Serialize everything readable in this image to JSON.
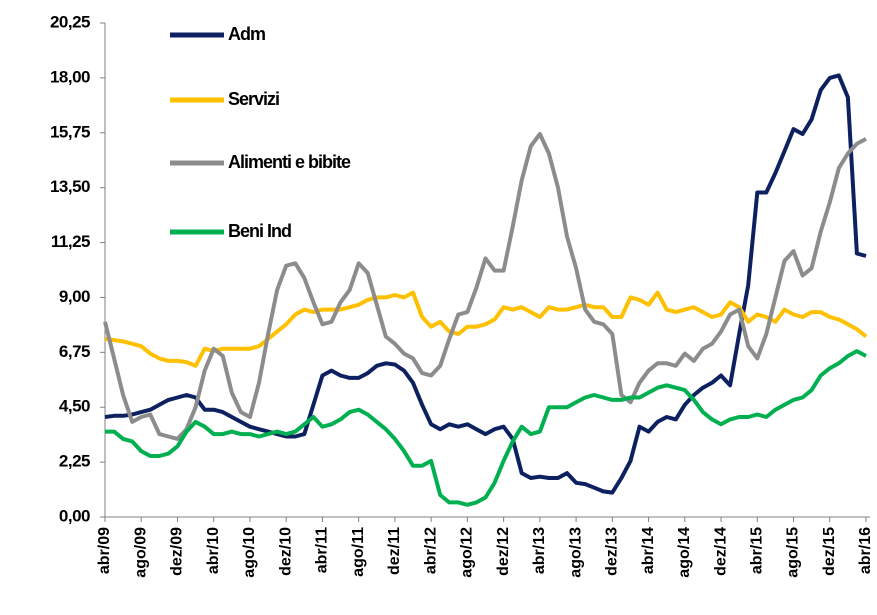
{
  "chart_data": {
    "type": "line",
    "categories": [
      "abr/09",
      null,
      null,
      null,
      "ago/09",
      null,
      null,
      null,
      "dez/09",
      null,
      null,
      null,
      "abr/10",
      null,
      null,
      null,
      "ago/10",
      null,
      null,
      null,
      "dez/10",
      null,
      null,
      null,
      "abr/11",
      null,
      null,
      null,
      "ago/11",
      null,
      null,
      null,
      "dez/11",
      null,
      null,
      null,
      "abr/12",
      null,
      null,
      null,
      "ago/12",
      null,
      null,
      null,
      "dez/12",
      null,
      null,
      null,
      "abr/13",
      null,
      null,
      null,
      "ago/13",
      null,
      null,
      null,
      "dez/13",
      null,
      null,
      null,
      "abr/14",
      null,
      null,
      null,
      "ago/14",
      null,
      null,
      null,
      "dez/14",
      null,
      null,
      null,
      "abr/15",
      null,
      null,
      null,
      "ago/15",
      null,
      null,
      null,
      "dez/15",
      null,
      null,
      null,
      "abr/16"
    ],
    "series": [
      {
        "name": "Adm",
        "color": "#0d2161",
        "values": [
          4.1,
          4.15,
          4.15,
          4.2,
          4.3,
          4.4,
          4.6,
          4.8,
          4.9,
          5.0,
          4.9,
          4.4,
          4.4,
          4.3,
          4.1,
          3.9,
          3.7,
          3.6,
          3.5,
          3.4,
          3.3,
          3.3,
          3.4,
          4.6,
          5.8,
          6.0,
          5.8,
          5.7,
          5.7,
          5.9,
          6.2,
          6.3,
          6.25,
          6.0,
          5.5,
          4.6,
          3.8,
          3.6,
          3.8,
          3.7,
          3.8,
          3.6,
          3.4,
          3.6,
          3.7,
          3.2,
          1.8,
          1.6,
          1.65,
          1.6,
          1.6,
          1.8,
          1.4,
          1.35,
          1.2,
          1.05,
          1.0,
          1.6,
          2.3,
          3.7,
          3.5,
          3.9,
          4.1,
          4.0,
          4.6,
          5.0,
          5.3,
          5.5,
          5.8,
          5.4,
          7.5,
          9.5,
          13.3,
          13.3,
          14.1,
          15.0,
          15.9,
          15.7,
          16.3,
          17.5,
          18.0,
          18.1,
          17.2,
          10.8,
          10.7
        ]
      },
      {
        "name": "Servizi",
        "color": "#ffc000",
        "values": [
          7.3,
          7.25,
          7.2,
          7.1,
          7.0,
          6.7,
          6.5,
          6.4,
          6.4,
          6.35,
          6.2,
          6.9,
          6.8,
          6.9,
          6.9,
          6.9,
          6.9,
          7.0,
          7.3,
          7.6,
          7.9,
          8.3,
          8.5,
          8.4,
          8.5,
          8.5,
          8.5,
          8.6,
          8.7,
          8.9,
          9.0,
          9.0,
          9.1,
          9.0,
          9.2,
          8.2,
          7.8,
          8.0,
          7.6,
          7.5,
          7.8,
          7.8,
          7.9,
          8.1,
          8.6,
          8.5,
          8.6,
          8.4,
          8.2,
          8.6,
          8.5,
          8.5,
          8.6,
          8.7,
          8.6,
          8.6,
          8.2,
          8.2,
          9.0,
          8.9,
          8.7,
          9.2,
          8.5,
          8.4,
          8.5,
          8.6,
          8.4,
          8.2,
          8.3,
          8.8,
          8.6,
          8.0,
          8.3,
          8.2,
          8.0,
          8.5,
          8.3,
          8.2,
          8.4,
          8.4,
          8.2,
          8.1,
          7.9,
          7.7,
          7.4
        ]
      },
      {
        "name": "Alimenti e bibite",
        "color": "#8c8c8c",
        "values": [
          8.0,
          6.5,
          5.0,
          3.9,
          4.1,
          4.2,
          3.4,
          3.3,
          3.2,
          3.6,
          4.5,
          6.0,
          6.9,
          6.6,
          5.1,
          4.3,
          4.1,
          5.5,
          7.5,
          9.3,
          10.3,
          10.4,
          9.8,
          8.8,
          7.9,
          8.0,
          8.8,
          9.3,
          10.4,
          10.0,
          8.7,
          7.4,
          7.1,
          6.7,
          6.5,
          5.9,
          5.8,
          6.2,
          7.3,
          8.3,
          8.4,
          9.4,
          10.6,
          10.1,
          10.1,
          11.9,
          13.8,
          15.2,
          15.7,
          14.9,
          13.5,
          11.5,
          10.2,
          8.5,
          8.0,
          7.9,
          7.5,
          5.0,
          4.7,
          5.5,
          6.0,
          6.3,
          6.3,
          6.2,
          6.7,
          6.4,
          6.9,
          7.1,
          7.6,
          8.3,
          8.5,
          7.0,
          6.5,
          7.5,
          9.0,
          10.5,
          10.9,
          9.9,
          10.2,
          11.7,
          12.9,
          14.3,
          14.9,
          15.3,
          15.5
        ]
      },
      {
        "name": "Beni Ind",
        "color": "#00b050",
        "values": [
          3.5,
          3.5,
          3.2,
          3.1,
          2.7,
          2.5,
          2.5,
          2.6,
          2.9,
          3.5,
          3.9,
          3.7,
          3.4,
          3.4,
          3.5,
          3.4,
          3.4,
          3.3,
          3.4,
          3.5,
          3.4,
          3.5,
          3.8,
          4.1,
          3.7,
          3.8,
          4.0,
          4.3,
          4.4,
          4.2,
          3.9,
          3.6,
          3.2,
          2.7,
          2.1,
          2.1,
          2.3,
          0.9,
          0.6,
          0.6,
          0.5,
          0.6,
          0.8,
          1.4,
          2.3,
          3.1,
          3.7,
          3.4,
          3.5,
          4.5,
          4.5,
          4.5,
          4.7,
          4.9,
          5.0,
          4.9,
          4.8,
          4.8,
          4.9,
          4.9,
          5.1,
          5.3,
          5.4,
          5.3,
          5.2,
          4.8,
          4.3,
          4.0,
          3.8,
          4.0,
          4.1,
          4.1,
          4.2,
          4.1,
          4.4,
          4.6,
          4.8,
          4.9,
          5.2,
          5.8,
          6.1,
          6.3,
          6.6,
          6.8,
          6.6
        ]
      }
    ],
    "ylim": [
      0,
      20.25
    ],
    "yticks": [
      {
        "value": 0,
        "label": "0,00"
      },
      {
        "value": 2.25,
        "label": "2,25"
      },
      {
        "value": 4.5,
        "label": "4,50"
      },
      {
        "value": 6.75,
        "label": "6,75"
      },
      {
        "value": 9,
        "label": "9,00"
      },
      {
        "value": 11.25,
        "label": "11,25"
      },
      {
        "value": 13.5,
        "label": "13,50"
      },
      {
        "value": 15.75,
        "label": "15,75"
      },
      {
        "value": 18,
        "label": "18,00"
      },
      {
        "value": 20.25,
        "label": "20,25"
      }
    ],
    "legend": "upper-left",
    "grid": false
  }
}
